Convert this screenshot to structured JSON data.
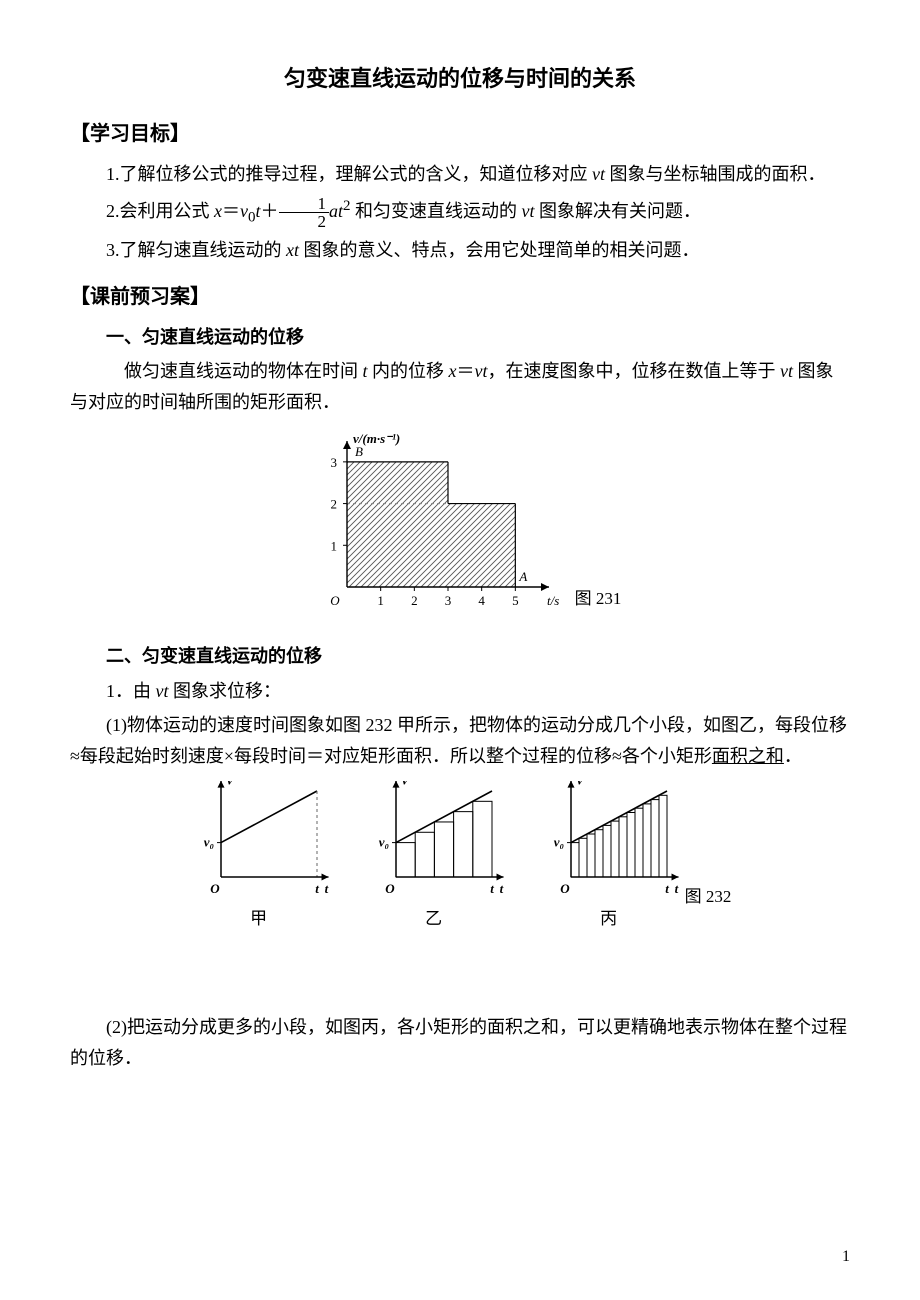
{
  "title": "匀变速直线运动的位移与时间的关系",
  "sections": {
    "goals_heading": "【学习目标】",
    "preview_heading": "【课前预习案】"
  },
  "goals": {
    "g1a": "1.了解位移公式的推导过程，理解公式的含义，知道位移对应 ",
    "g1b": " 图象与坐标轴围成的面积．",
    "g2a": "2.会利用公式 ",
    "g2b": " 和匀变速直线运动的 ",
    "g2c": " 图象解决有关问题．",
    "g3a": "3.了解匀速直线运动的 ",
    "g3b": " 图象的意义、特点，会用它处理简单的相关问题．",
    "vt": "vt",
    "xt": "xt",
    "formula_x": "x",
    "formula_eq": "＝",
    "formula_v0": "v",
    "formula_sub0": "0",
    "formula_t": "t",
    "formula_plus": "＋",
    "formula_a": "a",
    "formula_t2": "t",
    "formula_sq": "2",
    "frac_num": "1",
    "frac_den": "2"
  },
  "section1": {
    "heading": "一、匀速直线运动的位移",
    "p1a": "做匀速直线运动的物体在时间 ",
    "p1b": " 内的位移 ",
    "p1c": "，在速度图象中，位移在数值上等于 ",
    "p1d": " 图象与对应的时间轴所围的矩形面积．",
    "t": "t",
    "x": "x",
    "eq": "＝",
    "vt": "vt"
  },
  "fig231": {
    "caption": "图 231",
    "ylabel": "v/(m·s⁻¹)",
    "xlabel": "t/s",
    "point_B": "B",
    "point_A": "A",
    "origin": "O",
    "xticks": [
      "1",
      "2",
      "3",
      "4",
      "5"
    ],
    "yticks": [
      "1",
      "2",
      "3"
    ],
    "step_x": [
      0,
      3,
      3,
      5,
      5,
      0
    ],
    "step_y": [
      3,
      3,
      2,
      2,
      0,
      0
    ],
    "xlim": [
      0,
      6
    ],
    "ylim": [
      0,
      3.5
    ],
    "axis_color": "#000000",
    "hatch_color": "#555555",
    "dash_color": "#888888",
    "background": "#ffffff"
  },
  "section2": {
    "heading": "二、匀变速直线运动的位移",
    "line1a": "1．由 ",
    "line1b": " 图象求位移：",
    "vt": "vt",
    "p1": "(1)物体运动的速度时间图象如图 232 甲所示，把物体的运动分成几个小段，如图乙，每段位移≈每段起始时刻速度×每段时间＝对应矩形面积．所以整个过程的位移≈各个小矩形",
    "p1_underlined": "面积之和",
    "p1_end": "．",
    "p2": "(2)把运动分成更多的小段，如图丙，各小矩形的面积之和，可以更精确地表示物体在整个过程的位移．"
  },
  "fig232": {
    "caption": "图 232",
    "sublabels": [
      "甲",
      "乙",
      "丙"
    ],
    "ylabel": "v",
    "xlabel": "t",
    "origin": "O",
    "v0_label": "v₀",
    "v0": 0.4,
    "t_end": 1.0,
    "slope_end_v": 1.0,
    "n_bars_yi": 5,
    "n_bars_bing": 12,
    "axis_color": "#000000",
    "line_color": "#000000",
    "dash_color": "#666666",
    "background": "#ffffff"
  },
  "page_number": "1"
}
